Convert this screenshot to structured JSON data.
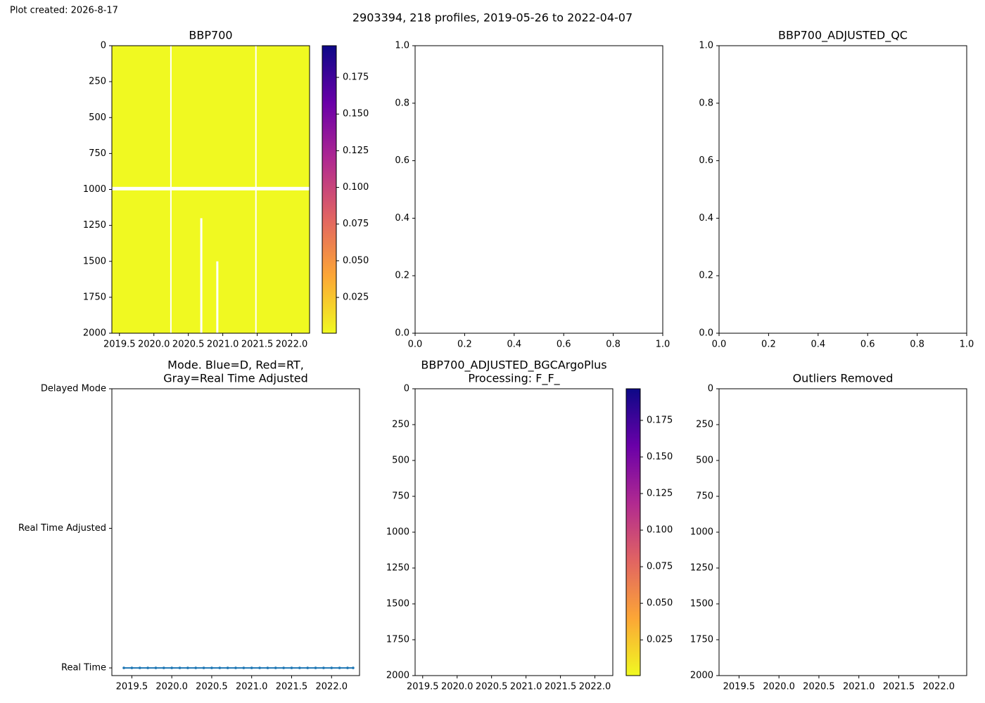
{
  "figure": {
    "created": "Plot created: 2026-8-17",
    "title": "2903394, 218 profiles, 2019-05-26 to 2022-04-07"
  },
  "chart_data": [
    {
      "type": "heatmap",
      "title": "BBP700",
      "fill": "#f0f921",
      "xlim": [
        2019.39,
        2022.26
      ],
      "xticks": [
        2019.5,
        {
          "value": 2020,
          "label": "2020.0"
        },
        2020.5,
        {
          "value": 2021,
          "label": "2021.0"
        },
        2021.5,
        {
          "value": 2022,
          "label": "2022.0"
        }
      ],
      "ylim": [
        2000,
        0
      ],
      "yticks": [
        0,
        250,
        500,
        750,
        1000,
        1250,
        1500,
        1750,
        2000
      ],
      "colorbar": {
        "clim": [
          0.0006,
          0.1966
        ],
        "ticks": [
          0.025,
          {
            "value": 0.05,
            "label": "0.050"
          },
          0.075,
          {
            "value": 0.1,
            "label": "0.100"
          },
          0.125,
          {
            "value": 0.15,
            "label": "0.150"
          },
          0.175
        ],
        "colors": [
          "#f0f921",
          "#fca636",
          "#e16462",
          "#b12a90",
          "#6a00a8",
          "#0d0887"
        ]
      }
    },
    {
      "type": "empty",
      "xlim": [
        0,
        1
      ],
      "xticks": [
        {
          "value": 0,
          "label": "0.0"
        },
        0.2,
        0.4,
        0.6,
        0.8,
        {
          "value": 1,
          "label": "1.0"
        }
      ],
      "ylim": [
        0,
        1
      ],
      "yticks": [
        {
          "value": 0,
          "label": "0.0"
        },
        0.2,
        0.4,
        0.6,
        0.8,
        {
          "value": 1,
          "label": "1.0"
        }
      ]
    },
    {
      "type": "empty",
      "title": "BBP700_ADJUSTED_QC",
      "xlim": [
        0,
        1
      ],
      "xticks": [
        {
          "value": 0,
          "label": "0.0"
        },
        0.2,
        0.4,
        0.6,
        0.8,
        {
          "value": 1,
          "label": "1.0"
        }
      ],
      "ylim": [
        0,
        1
      ],
      "yticks": [
        {
          "value": 0,
          "label": "0.0"
        },
        0.2,
        0.4,
        0.6,
        0.8,
        {
          "value": 1,
          "label": "1.0"
        }
      ]
    },
    {
      "type": "scatter",
      "title": [
        "Mode. Blue=D, Red=RT,",
        "Gray=Real Time Adjusted"
      ],
      "xlim": [
        2019.25,
        2022.35
      ],
      "xticks": [
        2019.5,
        {
          "value": 2020,
          "label": "2020.0"
        },
        2020.5,
        {
          "value": 2021,
          "label": "2021.0"
        },
        2021.5,
        {
          "value": 2022,
          "label": "2022.0"
        }
      ],
      "ylim": [
        -0.055,
        2
      ],
      "yticks": [
        {
          "value": 0,
          "label": "Real Time"
        },
        {
          "value": 1,
          "label": "Real Time Adjusted"
        },
        {
          "value": 2,
          "label": "Delayed Mode"
        }
      ],
      "series": [
        {
          "color": "#1f77b4",
          "x": [
            2019.4,
            2019.5,
            2019.6,
            2019.7,
            2019.8,
            2019.9,
            2020.0,
            2020.1,
            2020.2,
            2020.3,
            2020.4,
            2020.5,
            2020.6,
            2020.7,
            2020.8,
            2020.9,
            2021.0,
            2021.1,
            2021.2,
            2021.3,
            2021.4,
            2021.5,
            2021.6,
            2021.7,
            2021.8,
            2021.9,
            2022.0,
            2022.1,
            2022.2,
            2022.27
          ],
          "values": [
            0,
            0,
            0,
            0,
            0,
            0,
            0,
            0,
            0,
            0,
            0,
            0,
            0,
            0,
            0,
            0,
            0,
            0,
            0,
            0,
            0,
            0,
            0,
            0,
            0,
            0,
            0,
            0,
            0,
            0
          ]
        }
      ]
    },
    {
      "type": "heatmap",
      "title": [
        "BBP700_ADJUSTED_BGCArgoPlus",
        "Processing: F_F_"
      ],
      "xlim": [
        2019.39,
        2022.26
      ],
      "xticks": [
        2019.5,
        {
          "value": 2020,
          "label": "2020.0"
        },
        2020.5,
        {
          "value": 2021,
          "label": "2021.0"
        },
        2021.5,
        {
          "value": 2022,
          "label": "2022.0"
        }
      ],
      "ylim": [
        2000,
        0
      ],
      "yticks": [
        0,
        250,
        500,
        750,
        1000,
        1250,
        1500,
        1750,
        2000
      ],
      "colorbar": {
        "clim": [
          0.0006,
          0.1966
        ],
        "ticks": [
          0.025,
          {
            "value": 0.05,
            "label": "0.050"
          },
          0.075,
          {
            "value": 0.1,
            "label": "0.100"
          },
          0.125,
          {
            "value": 0.15,
            "label": "0.150"
          },
          0.175
        ],
        "colors": [
          "#f0f921",
          "#fca636",
          "#e16462",
          "#b12a90",
          "#6a00a8",
          "#0d0887"
        ]
      }
    },
    {
      "type": "empty",
      "title": "Outliers Removed",
      "xlim": [
        2019.25,
        2022.35
      ],
      "xticks": [
        2019.5,
        {
          "value": 2020,
          "label": "2020.0"
        },
        2020.5,
        {
          "value": 2021,
          "label": "2021.0"
        },
        2021.5,
        {
          "value": 2022,
          "label": "2022.0"
        }
      ],
      "ylim": [
        2000,
        0
      ],
      "yticks": [
        0,
        250,
        500,
        750,
        1000,
        1250,
        1500,
        1750,
        2000
      ]
    }
  ]
}
